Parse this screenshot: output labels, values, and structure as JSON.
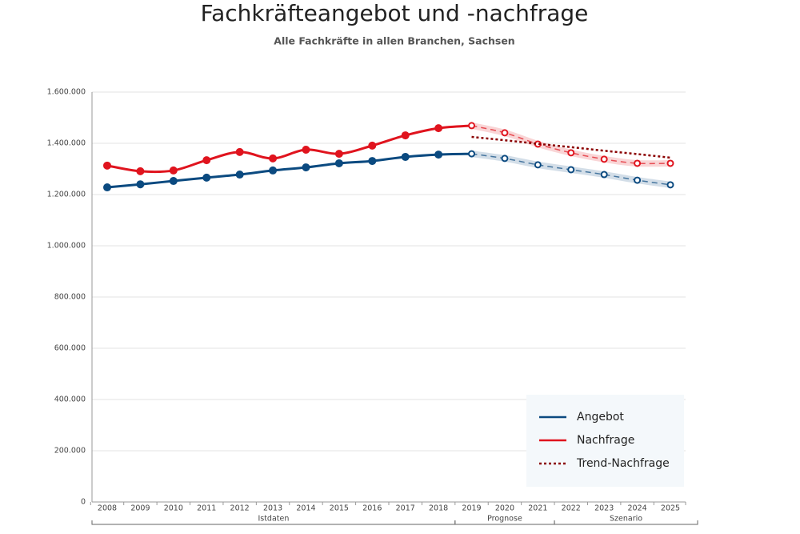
{
  "chart_data": {
    "type": "line",
    "title": "Fachkräfteangebot und -nachfrage",
    "subtitle": "Alle Fachkräfte in allen Branchen, Sachsen",
    "categories": [
      "2008",
      "2009",
      "2010",
      "2011",
      "2012",
      "2013",
      "2014",
      "2015",
      "2016",
      "2017",
      "2018",
      "2019",
      "2020",
      "2021",
      "2022",
      "2023",
      "2024",
      "2025"
    ],
    "forecast_start": "2019",
    "series": [
      {
        "name": "Angebot",
        "color": "#0b4a80",
        "style": "solid",
        "values": [
          1228000,
          1240000,
          1253000,
          1266000,
          1278000,
          1294000,
          1306000,
          1322000,
          1331000,
          1347000,
          1356000,
          1359000,
          1341000,
          1316000,
          1297000,
          1278000,
          1256000,
          1238000
        ]
      },
      {
        "name": "Nachfrage",
        "color": "#e0141e",
        "style": "solid",
        "values": [
          1313000,
          1291000,
          1294000,
          1334000,
          1366000,
          1341000,
          1375000,
          1359000,
          1391000,
          1431000,
          1459000,
          1469000,
          1441000,
          1397000,
          1363000,
          1338000,
          1322000,
          1322000
        ]
      },
      {
        "name": "Trend-Nachfrage",
        "color": "#8b0000",
        "style": "dotted",
        "values": [
          null,
          null,
          null,
          null,
          null,
          null,
          null,
          null,
          null,
          null,
          null,
          1425000,
          1412000,
          1398000,
          1385000,
          1371000,
          1358000,
          1344000
        ]
      }
    ],
    "periods": [
      {
        "label": "Istdaten",
        "start": "2008",
        "end": "2018"
      },
      {
        "label": "Prognose",
        "start": "2019",
        "end": "2021"
      },
      {
        "label": "Szenario",
        "start": "2022",
        "end": "2025"
      }
    ],
    "ylim": [
      0,
      1600000
    ],
    "yticks": [
      0,
      {
        "value": 200000,
        "label": "200.000"
      },
      {
        "value": 400000,
        "label": "400.000"
      },
      {
        "value": 600000,
        "label": "600.000"
      },
      {
        "value": 800000,
        "label": "800.000"
      },
      {
        "value": 1000000,
        "label": "1.000.000"
      },
      {
        "value": 1200000,
        "label": "1.200.000"
      },
      {
        "value": 1400000,
        "label": "1.400.000"
      },
      {
        "value": 1600000,
        "label": "1.600.000"
      }
    ],
    "grid": true,
    "legend": "lower right"
  }
}
